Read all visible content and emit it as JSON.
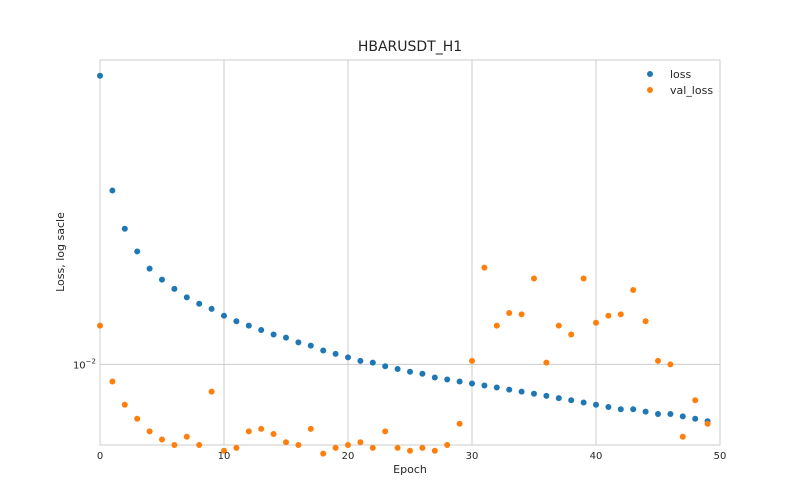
{
  "chart_data": {
    "type": "scatter",
    "title": "HBARUSDT_H1",
    "xlabel": "Epoch",
    "ylabel": "Loss, log sacle",
    "xlim": [
      0,
      50
    ],
    "ylim": [
      0.0064,
      0.054
    ],
    "yscale": "log",
    "grid": true,
    "legend_position": "top-right",
    "xticks": [
      0,
      10,
      20,
      30,
      40,
      50
    ],
    "yticks": [
      {
        "value": 0.01,
        "label": "10",
        "exponent": "−2"
      }
    ],
    "series": [
      {
        "name": "loss",
        "color": "#1f77b4",
        "x": [
          0,
          1,
          2,
          3,
          4,
          5,
          6,
          7,
          8,
          9,
          10,
          11,
          12,
          13,
          14,
          15,
          16,
          17,
          18,
          19,
          20,
          21,
          22,
          23,
          24,
          25,
          26,
          27,
          28,
          29,
          30,
          31,
          32,
          33,
          34,
          35,
          36,
          37,
          38,
          39,
          40,
          41,
          42,
          43,
          44,
          45,
          46,
          47,
          48,
          49
        ],
        "values": [
          0.0495,
          0.0262,
          0.0212,
          0.0187,
          0.017,
          0.016,
          0.0152,
          0.0145,
          0.014,
          0.0136,
          0.0131,
          0.0127,
          0.0124,
          0.0121,
          0.0118,
          0.0116,
          0.0113,
          0.0111,
          0.0108,
          0.0106,
          0.0104,
          0.0102,
          0.0101,
          0.0099,
          0.00975,
          0.0096,
          0.0095,
          0.0093,
          0.0092,
          0.0091,
          0.009,
          0.0089,
          0.0088,
          0.0087,
          0.0086,
          0.0085,
          0.0084,
          0.0083,
          0.0082,
          0.0081,
          0.008,
          0.0079,
          0.0078,
          0.0078,
          0.0077,
          0.0076,
          0.0076,
          0.0075,
          0.0074,
          0.0073
        ]
      },
      {
        "name": "val_loss",
        "color": "#ff7f0e",
        "x": [
          0,
          1,
          2,
          3,
          4,
          5,
          6,
          7,
          8,
          9,
          10,
          11,
          12,
          13,
          14,
          15,
          16,
          17,
          18,
          19,
          20,
          21,
          22,
          23,
          24,
          25,
          26,
          27,
          28,
          29,
          30,
          31,
          32,
          33,
          34,
          35,
          36,
          37,
          38,
          39,
          40,
          41,
          42,
          43,
          44,
          45,
          46,
          47,
          48,
          49
        ],
        "values": [
          0.0124,
          0.0091,
          0.008,
          0.0074,
          0.0069,
          0.0066,
          0.0064,
          0.0067,
          0.0064,
          0.0086,
          0.0062,
          0.0063,
          0.0069,
          0.007,
          0.0068,
          0.0065,
          0.0064,
          0.007,
          0.0061,
          0.0063,
          0.0064,
          0.0065,
          0.0063,
          0.0069,
          0.0063,
          0.0062,
          0.0063,
          0.0062,
          0.0064,
          0.0072,
          0.0102,
          0.0171,
          0.0124,
          0.0133,
          0.0132,
          0.0161,
          0.0101,
          0.0124,
          0.0118,
          0.0161,
          0.0126,
          0.0131,
          0.0132,
          0.0151,
          0.0127,
          0.0102,
          0.01,
          0.0067,
          0.0082,
          0.0072
        ]
      }
    ]
  }
}
